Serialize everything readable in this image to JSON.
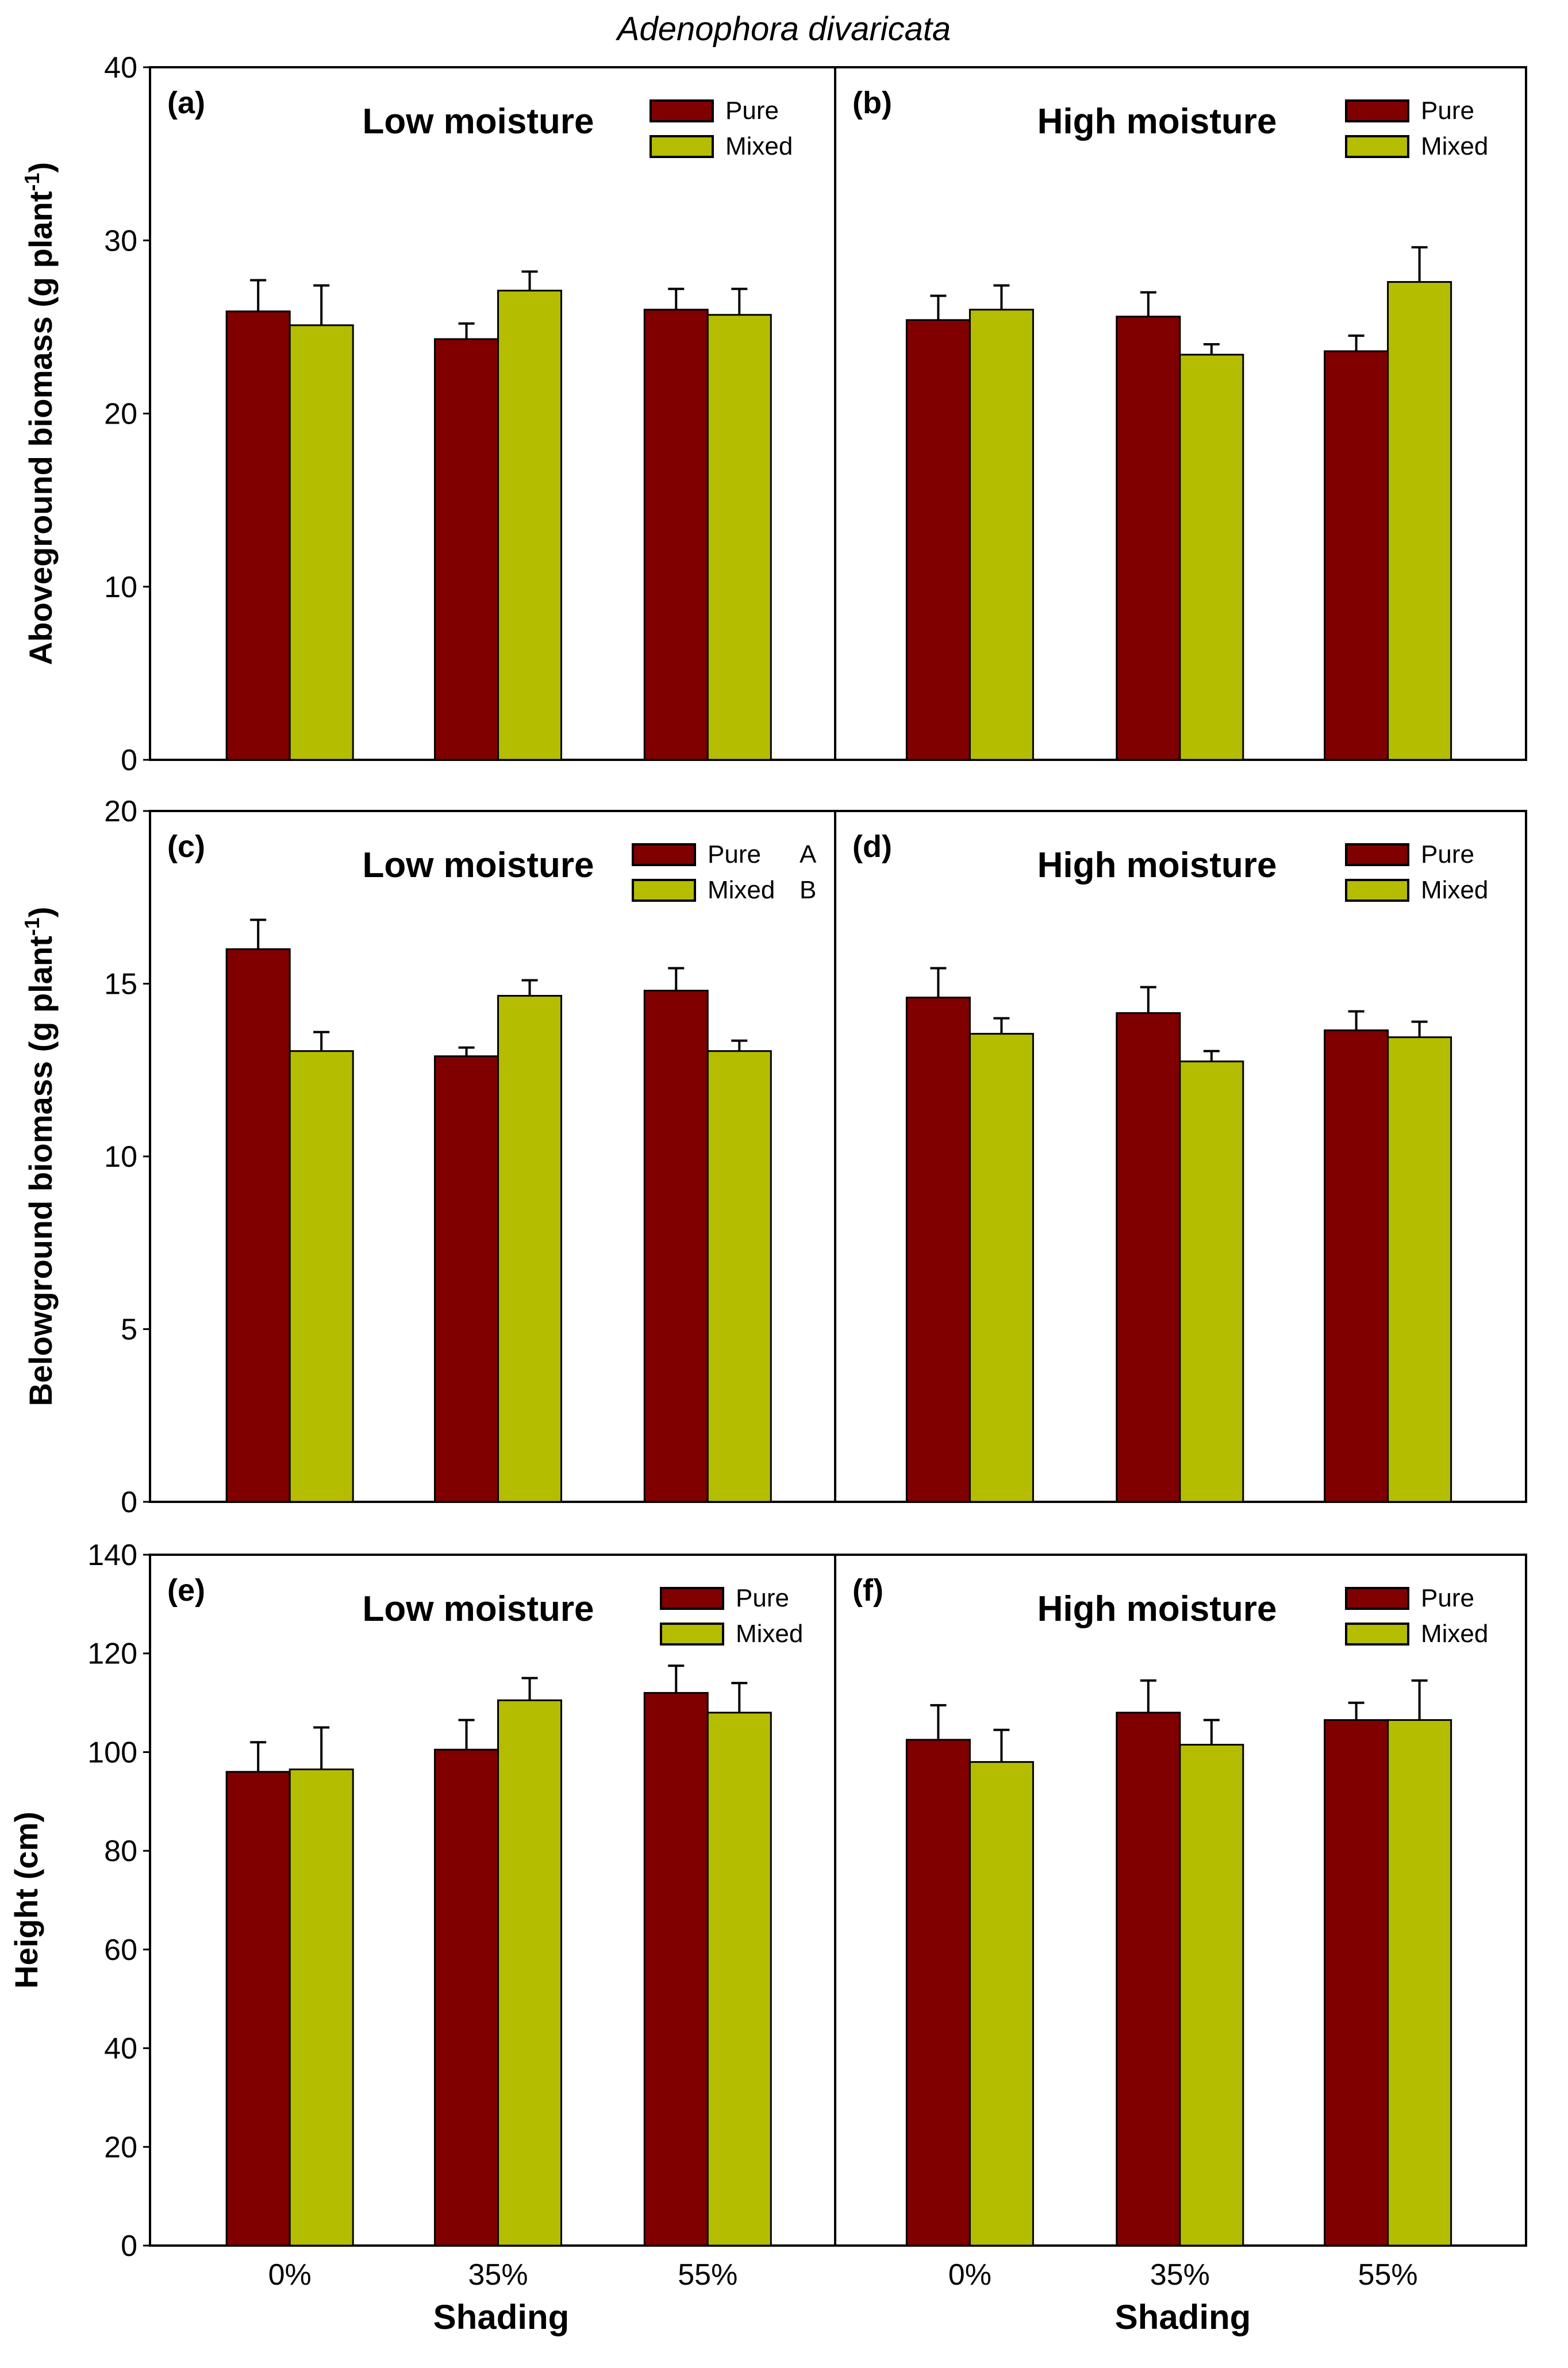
{
  "title": "Adenophora divaricata",
  "colors": {
    "pure": "#800000",
    "mixed": "#b5bd00"
  },
  "legend": {
    "pure": "Pure",
    "mixed": "Mixed"
  },
  "x_axis": {
    "label": "Shading",
    "ticks": [
      "0%",
      "35%",
      "55%"
    ]
  },
  "chart_data": [
    {
      "type": "bar",
      "panel": "(a)",
      "title": "Low moisture",
      "ylabel": "Aboveground biomass (g plant",
      "ylabel_sup": "-1",
      "ylabel_end": ")",
      "ylim": [
        0,
        40
      ],
      "yticks": [
        0,
        10,
        20,
        30,
        40
      ],
      "categories": [
        "0%",
        "35%",
        "55%"
      ],
      "series": [
        {
          "name": "Pure",
          "values": [
            25.9,
            24.3,
            26.0
          ],
          "errors": [
            1.8,
            0.9,
            1.2
          ]
        },
        {
          "name": "Mixed",
          "values": [
            25.1,
            27.1,
            25.7
          ],
          "errors": [
            2.3,
            1.1,
            1.5
          ]
        }
      ]
    },
    {
      "type": "bar",
      "panel": "(b)",
      "title": "High moisture",
      "ylim": [
        0,
        40
      ],
      "categories": [
        "0%",
        "35%",
        "55%"
      ],
      "series": [
        {
          "name": "Pure",
          "values": [
            25.4,
            25.6,
            23.6
          ],
          "errors": [
            1.4,
            1.4,
            0.9
          ]
        },
        {
          "name": "Mixed",
          "values": [
            26.0,
            23.4,
            27.6
          ],
          "errors": [
            1.4,
            0.6,
            2.0
          ]
        }
      ]
    },
    {
      "type": "bar",
      "panel": "(c)",
      "title": "Low moisture",
      "ylabel": "Belowground biomass (g plant",
      "ylabel_sup": "-1",
      "ylabel_end": ")",
      "ylim": [
        0,
        20
      ],
      "yticks": [
        0,
        5,
        10,
        15,
        20
      ],
      "legend_letters": [
        "A",
        "B"
      ],
      "categories": [
        "0%",
        "35%",
        "55%"
      ],
      "series": [
        {
          "name": "Pure",
          "values": [
            16.0,
            12.9,
            14.8
          ],
          "errors": [
            0.85,
            0.25,
            0.65
          ]
        },
        {
          "name": "Mixed",
          "values": [
            13.05,
            14.65,
            13.05
          ],
          "errors": [
            0.55,
            0.45,
            0.3
          ]
        }
      ]
    },
    {
      "type": "bar",
      "panel": "(d)",
      "title": "High moisture",
      "ylim": [
        0,
        20
      ],
      "categories": [
        "0%",
        "35%",
        "55%"
      ],
      "series": [
        {
          "name": "Pure",
          "values": [
            14.6,
            14.15,
            13.65
          ],
          "errors": [
            0.85,
            0.75,
            0.55
          ]
        },
        {
          "name": "Mixed",
          "values": [
            13.55,
            12.75,
            13.45
          ],
          "errors": [
            0.45,
            0.3,
            0.45
          ]
        }
      ]
    },
    {
      "type": "bar",
      "panel": "(e)",
      "title": "Low moisture",
      "ylabel": "Height (cm)",
      "ylim": [
        0,
        140
      ],
      "yticks": [
        0,
        20,
        40,
        60,
        80,
        100,
        120,
        140
      ],
      "categories": [
        "0%",
        "35%",
        "55%"
      ],
      "series": [
        {
          "name": "Pure",
          "values": [
            96,
            100.5,
            112
          ],
          "errors": [
            6,
            6,
            5.5
          ]
        },
        {
          "name": "Mixed",
          "values": [
            96.5,
            110.5,
            108
          ],
          "errors": [
            8.5,
            4.5,
            6
          ]
        }
      ]
    },
    {
      "type": "bar",
      "panel": "(f)",
      "title": "High moisture",
      "ylim": [
        0,
        140
      ],
      "categories": [
        "0%",
        "35%",
        "55%"
      ],
      "series": [
        {
          "name": "Pure",
          "values": [
            102.5,
            108,
            106.5
          ],
          "errors": [
            7,
            6.5,
            3.5
          ]
        },
        {
          "name": "Mixed",
          "values": [
            98,
            101.5,
            106.5
          ],
          "errors": [
            6.5,
            5,
            8
          ]
        }
      ]
    }
  ]
}
